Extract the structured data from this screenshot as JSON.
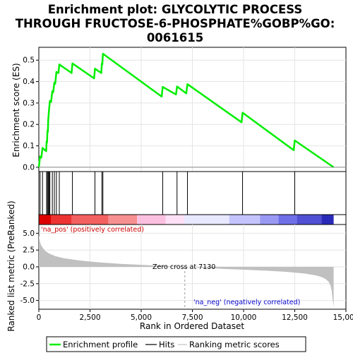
{
  "chart_data": {
    "type": "line",
    "title": "Enrichment plot: GLYCOLYTIC PROCESS THROUGH FRUCTOSE-6-PHOSPHATE%GOBP%GO:0061615",
    "title_lines": [
      "Enrichment plot: GLYCOLYTIC PROCESS",
      "THROUGH FRUCTOSE-6-PHOSPHATE%GOBP%GO:",
      "0061615"
    ],
    "xlabel": "Rank in Ordered Dataset",
    "xlim": [
      0,
      15000
    ],
    "x_ticks": [
      0,
      2500,
      5000,
      7500,
      10000,
      12500,
      15000
    ],
    "x_tick_labels": [
      "0",
      "2,500",
      "5,000",
      "7,500",
      "10,000",
      "12,500",
      "15,000"
    ],
    "panels": {
      "es": {
        "ylabel": "Enrichment score (ES)",
        "ylim": [
          -0.02,
          0.56
        ],
        "y_ticks": [
          0.0,
          0.1,
          0.2,
          0.3,
          0.4,
          0.5
        ],
        "y_tick_labels": [
          "0.0",
          "0.1",
          "0.2",
          "0.3",
          "0.4",
          "0.5"
        ],
        "color": "#00ee00"
      },
      "metric": {
        "ylabel": "Ranked list metric (PreRanked)",
        "ylim": [
          -6.3,
          6.3
        ],
        "y_ticks": [
          -5.0,
          -2.5,
          0.0,
          2.5,
          5.0
        ],
        "y_tick_labels": [
          "-5.0",
          "-2.5",
          "0.0",
          "2.5",
          "5.0"
        ],
        "fill_color": "#c0c0c0"
      }
    },
    "series": [
      {
        "name": "Enrichment profile",
        "x": [
          0,
          60,
          120,
          180,
          240,
          300,
          360,
          380,
          400,
          420,
          440,
          460,
          500,
          540,
          600,
          660,
          700,
          760,
          800,
          860,
          960,
          1000,
          1600,
          1640,
          2700,
          2740,
          3050,
          3080,
          3100,
          3130,
          6000,
          6050,
          6700,
          6750,
          7200,
          7260,
          9900,
          9950,
          12450,
          12500,
          14400
        ],
        "y": [
          0.0,
          0.05,
          0.045,
          0.09,
          0.085,
          0.08,
          0.075,
          0.12,
          0.115,
          0.17,
          0.165,
          0.22,
          0.27,
          0.31,
          0.305,
          0.355,
          0.35,
          0.395,
          0.39,
          0.445,
          0.44,
          0.48,
          0.44,
          0.485,
          0.415,
          0.46,
          0.44,
          0.485,
          0.48,
          0.53,
          0.33,
          0.375,
          0.34,
          0.377,
          0.345,
          0.388,
          0.21,
          0.255,
          0.08,
          0.125,
          0.0
        ]
      },
      {
        "name": "Hits",
        "x": [
          60,
          180,
          380,
          420,
          460,
          500,
          540,
          660,
          760,
          860,
          1000,
          1640,
          2740,
          3080,
          3130,
          6050,
          6750,
          7260,
          9950,
          12500
        ]
      },
      {
        "name": "Ranking metric scores",
        "x": [
          0,
          50,
          100,
          200,
          300,
          500,
          800,
          1200,
          2000,
          3000,
          4000,
          5000,
          6000,
          7130,
          8000,
          9000,
          10000,
          11000,
          12000,
          12500,
          13000,
          13500,
          13800,
          14000,
          14150,
          14250,
          14300,
          14350,
          14400
        ],
        "y": [
          4.7,
          3.8,
          3.3,
          2.8,
          2.4,
          2.0,
          1.6,
          1.3,
          0.95,
          0.65,
          0.45,
          0.3,
          0.15,
          0.0,
          -0.15,
          -0.3,
          -0.42,
          -0.55,
          -0.72,
          -0.85,
          -1.0,
          -1.25,
          -1.5,
          -1.8,
          -2.2,
          -2.8,
          -3.5,
          -4.8,
          -6.0
        ]
      }
    ],
    "heatmap_bar": {
      "colors": [
        "#dd0000",
        "#ee3333",
        "#f36060",
        "#f79090",
        "#fbc0e0",
        "#fde0f6",
        "#e8e8ff",
        "#c4c4fc",
        "#9999f4",
        "#6f6fe8",
        "#5050d4",
        "#2a2ab8"
      ],
      "breaks": [
        0,
        600,
        1600,
        3400,
        4800,
        6200,
        7100,
        9300,
        10800,
        11700,
        12600,
        13800,
        14400
      ]
    },
    "annotations": {
      "na_pos": "'na_pos' (positively correlated)",
      "na_neg": "'na_neg' (negatively correlated)",
      "zero_cross": "Zero cross at 7130",
      "zero_cross_x": 7130
    },
    "legend": {
      "placement": "bottom",
      "entries": [
        {
          "label": "Enrichment profile",
          "color": "#00ee00"
        },
        {
          "label": "Hits",
          "color": "#000000"
        },
        {
          "label": "Ranking metric scores",
          "color": "#c0c0c0"
        }
      ]
    }
  }
}
